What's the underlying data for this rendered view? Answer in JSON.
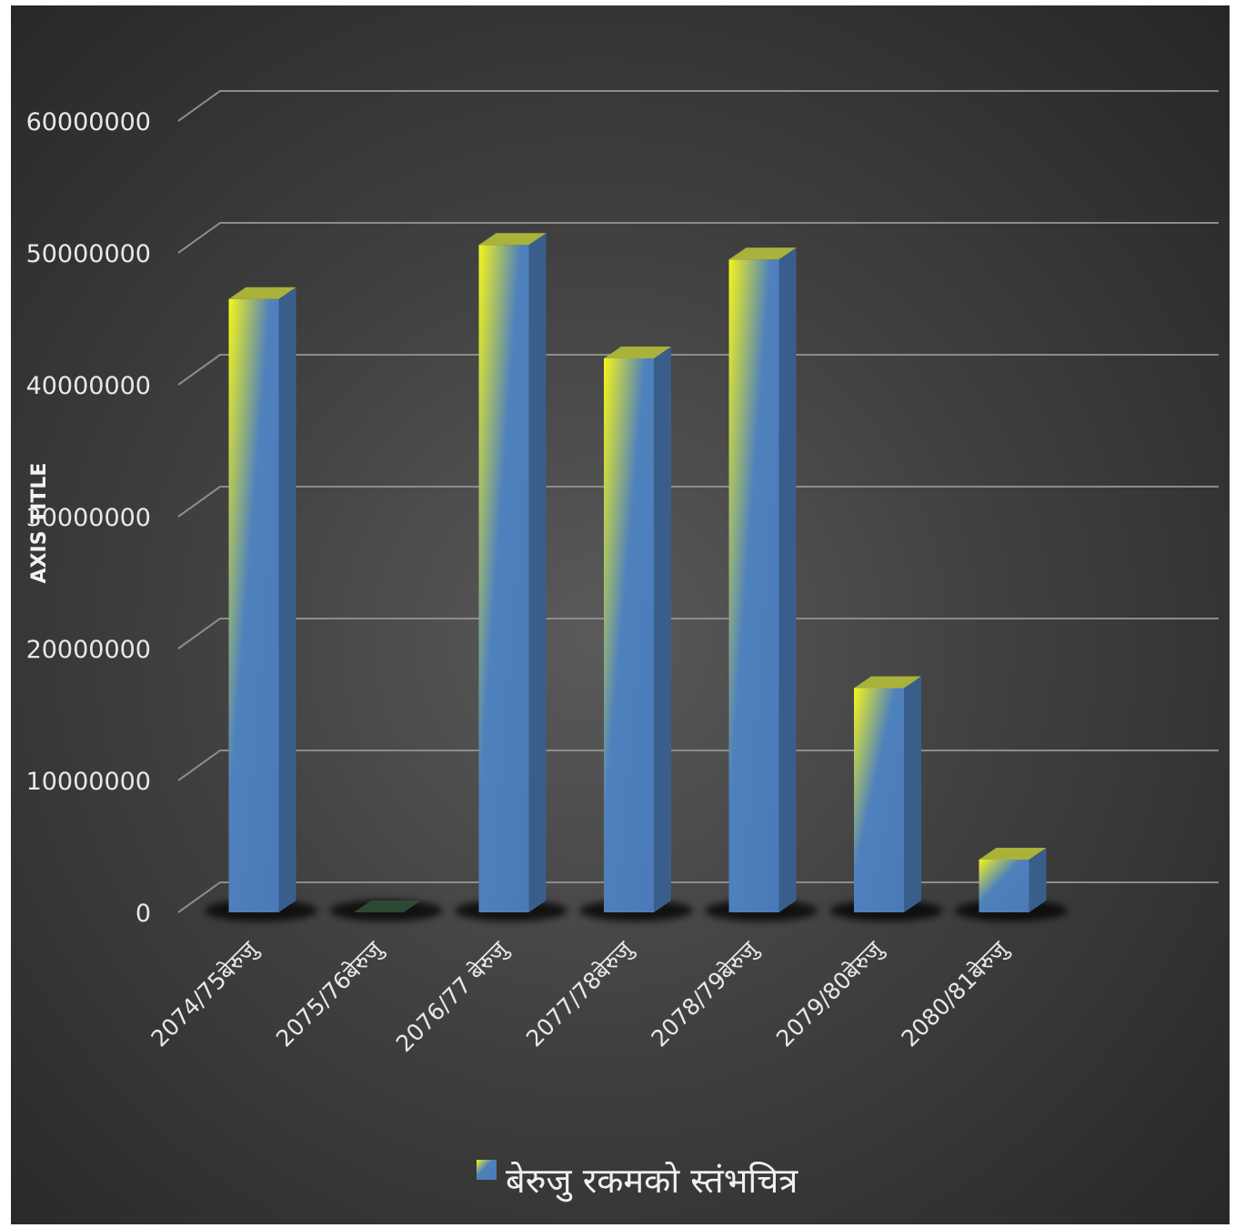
{
  "chart_data": {
    "type": "bar",
    "title": "",
    "xlabel": "",
    "ylabel": "AXIS TITLE",
    "categories": [
      "2074/75बेरुजु",
      "2075/76बेरुजु",
      "2076/77 बेरुजु",
      "2077/78बेरुजु",
      "2078/79बेरुजु",
      "2079/80बेरुजु",
      "2080/81बेरुजु"
    ],
    "series": [
      {
        "name": "बेरुजु रकमको स्तंभचित्र",
        "values": [
          46500000,
          0,
          50600000,
          42000000,
          49500000,
          17000000,
          4000000
        ],
        "colors": {
          "gradient_start": "#f5f51a",
          "gradient_end": "#4f81bd",
          "side": "#3a5e8c",
          "top": "#a9b23a"
        }
      }
    ],
    "ylim": [
      0,
      60000000
    ],
    "yticks": [
      "0",
      "10000000",
      "20000000",
      "30000000",
      "40000000",
      "50000000",
      "60000000"
    ],
    "grid": true,
    "legend": "bottom",
    "style": "3d-column",
    "background": "#3f3f3f"
  }
}
